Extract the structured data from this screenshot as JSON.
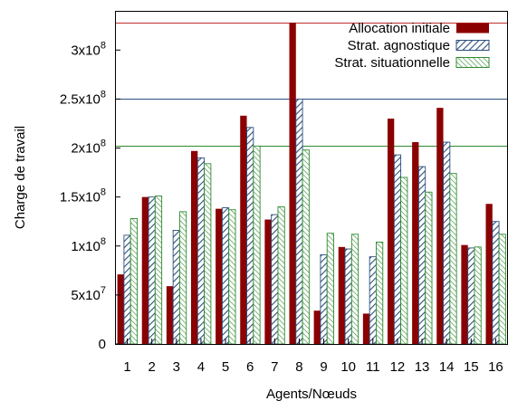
{
  "chart_data": {
    "type": "bar",
    "xlabel": "Agents/Nœuds",
    "ylabel": "Charge de travail",
    "categories": [
      "1",
      "2",
      "3",
      "4",
      "5",
      "6",
      "7",
      "8",
      "9",
      "10",
      "11",
      "12",
      "13",
      "14",
      "15",
      "16"
    ],
    "ylim": [
      0,
      340000000
    ],
    "yticks": [
      {
        "value": 0,
        "label": "0",
        "sup": ""
      },
      {
        "value": 50000000,
        "label": "5x10",
        "sup": "7"
      },
      {
        "value": 100000000,
        "label": "1x10",
        "sup": "8"
      },
      {
        "value": 150000000,
        "label": "1.5x10",
        "sup": "8"
      },
      {
        "value": 200000000,
        "label": "2x10",
        "sup": "8"
      },
      {
        "value": 250000000,
        "label": "2.5x10",
        "sup": "8"
      },
      {
        "value": 300000000,
        "label": "3x10",
        "sup": "8"
      }
    ],
    "series": [
      {
        "name": "Allocation initiale",
        "color": "#8b0000",
        "pattern": "solid",
        "values": [
          71000000,
          150000000,
          59000000,
          197000000,
          138000000,
          233000000,
          127000000,
          328000000,
          34000000,
          99000000,
          31000000,
          230000000,
          206000000,
          241000000,
          101000000,
          143000000
        ]
      },
      {
        "name": "Strat. agnostique",
        "color": "#2c4f7c",
        "pattern": "hatch-blue",
        "values": [
          111000000,
          150000000,
          116000000,
          190000000,
          139000000,
          221000000,
          132000000,
          250000000,
          91000000,
          97000000,
          89000000,
          193000000,
          181000000,
          206000000,
          98000000,
          125000000
        ]
      },
      {
        "name": "Strat. situationnelle",
        "color": "#2f8a2f",
        "pattern": "hatch-green",
        "values": [
          128000000,
          151000000,
          135000000,
          184000000,
          137000000,
          202000000,
          140000000,
          198000000,
          113000000,
          112000000,
          104000000,
          170000000,
          155000000,
          174000000,
          99000000,
          112000000
        ]
      }
    ],
    "reference_lines": [
      {
        "value": 328000000,
        "color": "#c03030"
      },
      {
        "value": 250000000,
        "color": "#2c4f7c"
      },
      {
        "value": 202000000,
        "color": "#2f8a2f"
      }
    ],
    "grid": false,
    "legend_position": "top-right"
  }
}
